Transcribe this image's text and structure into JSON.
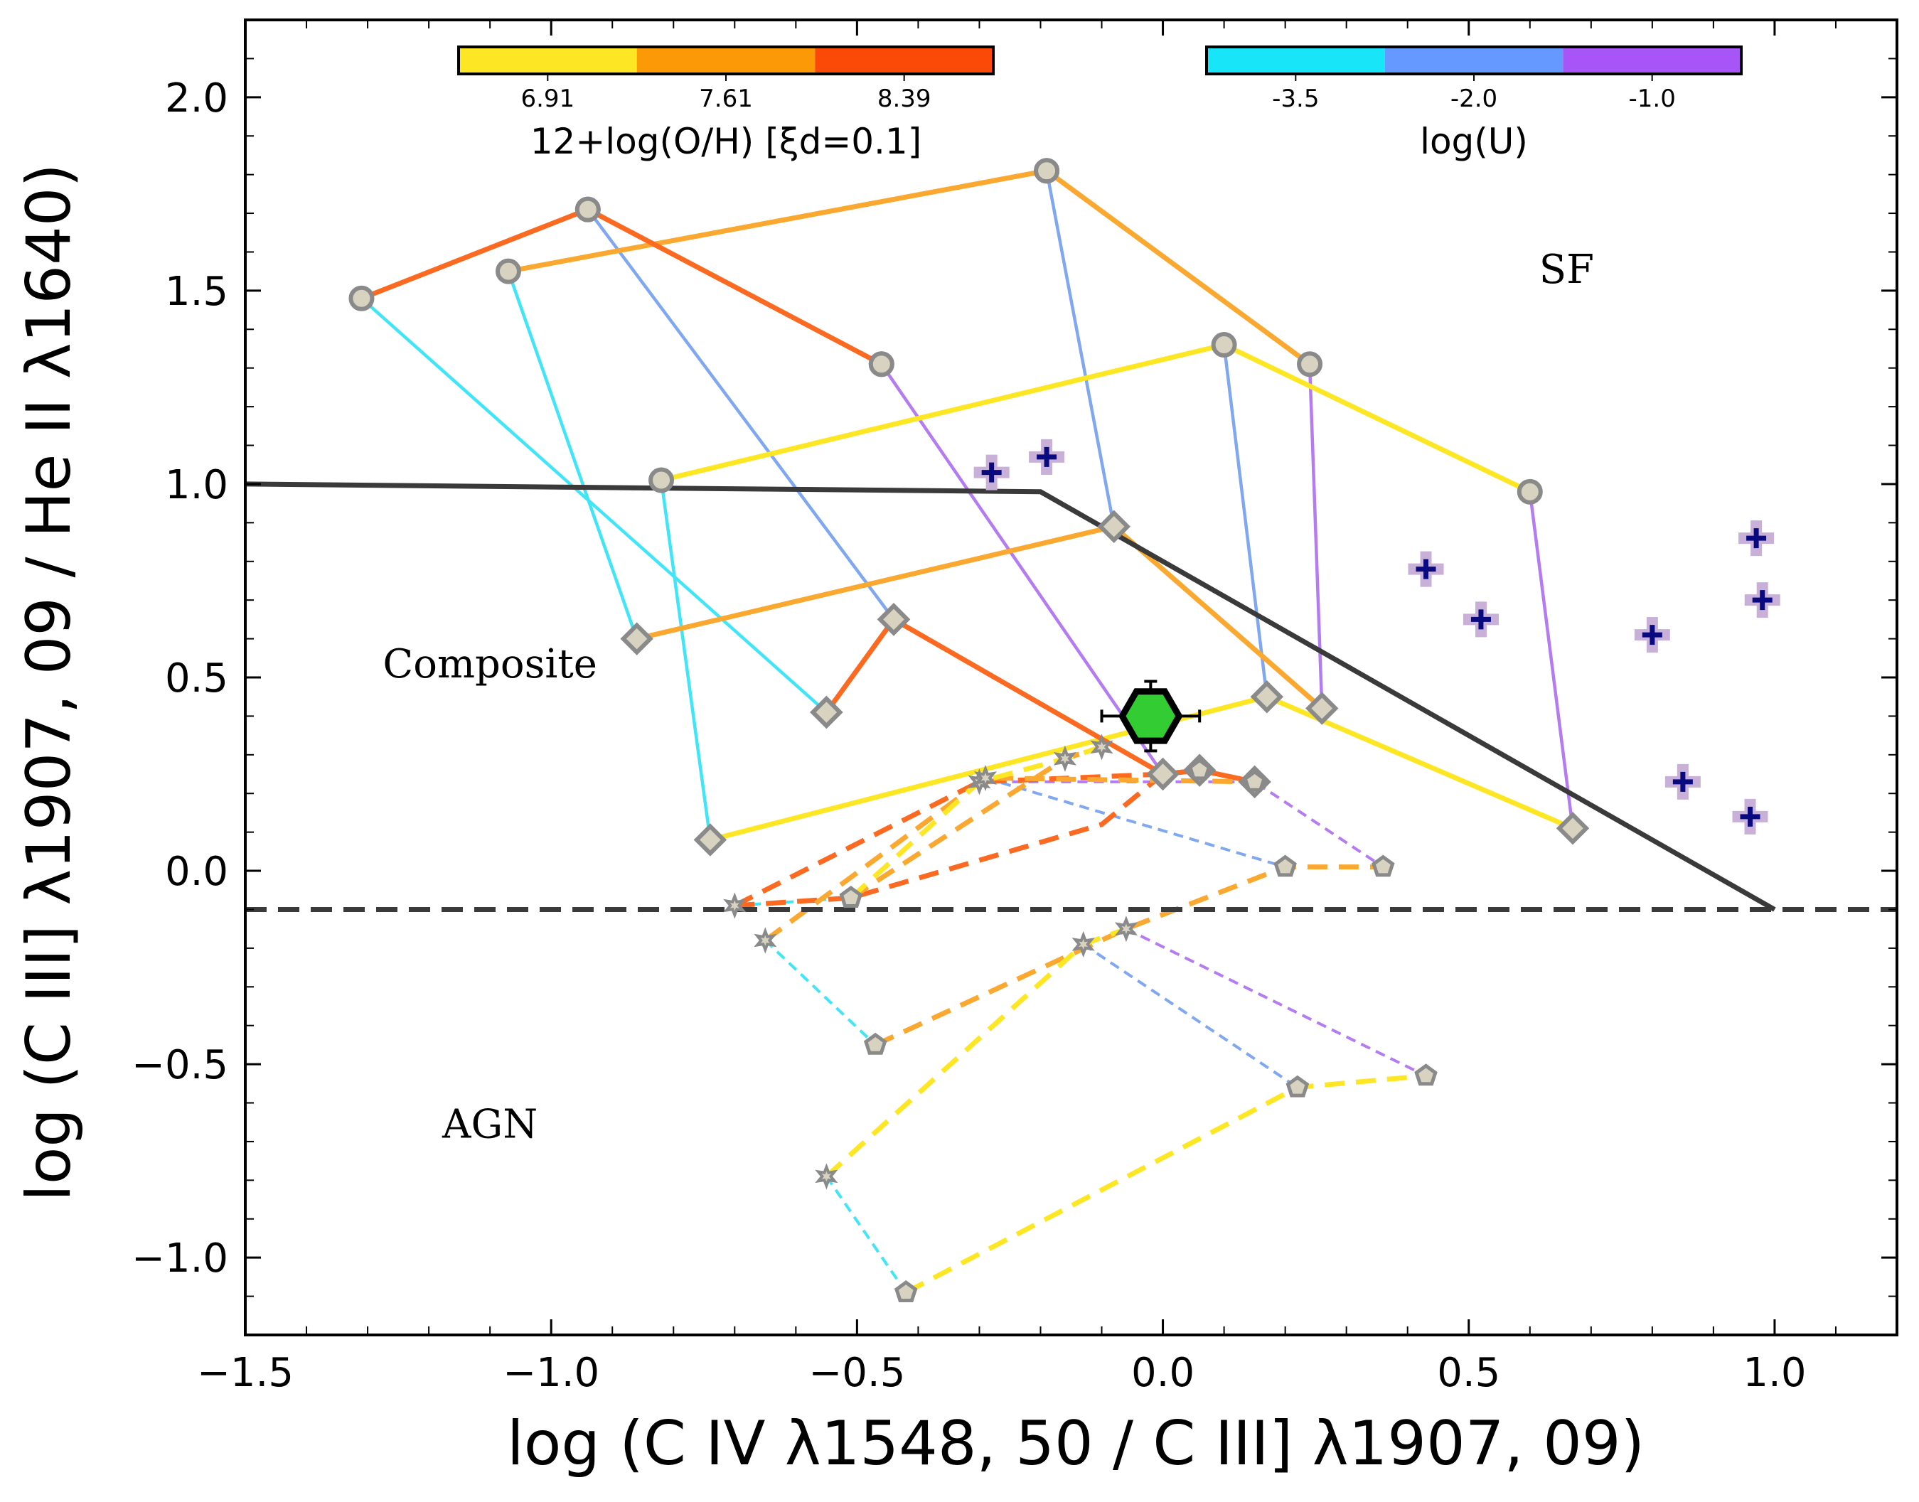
{
  "chart_data": {
    "type": "scatter",
    "xlabel": "log (C IV λ1548, 50 / C III] λ1907, 09)",
    "ylabel": "log (C III] λ1907, 09 / He II λ1640)",
    "xlim": [
      -1.5,
      1.2
    ],
    "ylim": [
      -1.2,
      2.2
    ],
    "x_ticks": [
      -1.5,
      -1.0,
      -0.5,
      0.0,
      0.5,
      1.0
    ],
    "x_tick_labels": [
      "−1.5",
      "−1.0",
      "−0.5",
      "0.0",
      "0.5",
      "1.0"
    ],
    "y_ticks": [
      -1.0,
      -0.5,
      0.0,
      0.5,
      1.0,
      1.5,
      2.0
    ],
    "y_tick_labels": [
      "−1.0",
      "−0.5",
      "0.0",
      "0.5",
      "1.0",
      "1.5",
      "2.0"
    ],
    "grid": false,
    "region_labels": [
      {
        "text": "SF",
        "x": 0.66,
        "y": 1.52
      },
      {
        "text": "Composite",
        "x": -1.1,
        "y": 0.5
      },
      {
        "text": "AGN",
        "x": -1.1,
        "y": -0.69
      }
    ],
    "demarcation": {
      "solid": {
        "x": [
          -1.5,
          -0.2,
          1.0
        ],
        "y": [
          1.0,
          0.98,
          -0.1
        ]
      },
      "dashed": {
        "y": -0.1
      }
    },
    "colorbars": [
      {
        "title": "12+log(O/H) [ξd=0.1]",
        "tick_labels": [
          "6.91",
          "7.61",
          "8.39"
        ],
        "colors": [
          "#fde725",
          "#fb9a06",
          "#fb4a08"
        ]
      },
      {
        "title": "log(U)",
        "tick_labels": [
          "-3.5",
          "-2.0",
          "-1.0"
        ],
        "colors": [
          "#18e6f8",
          "#6699ff",
          "#a855f7"
        ]
      }
    ],
    "metallicity_colors": {
      "low": "#fde725",
      "mid": "#fba830",
      "high": "#fb6a20"
    },
    "logU_colors": {
      "low": "#40e6f8",
      "mid": "#80a8f0",
      "high": "#b47cf0"
    },
    "sf_models": {
      "marker_logU_low": "circle",
      "marker_logU_high": "diamond",
      "metallicity_tracks": [
        {
          "metallicity": "low",
          "points": [
            [
              -0.82,
              1.01
            ],
            [
              0.1,
              1.36
            ],
            [
              0.6,
              0.98
            ]
          ]
        },
        {
          "metallicity": "low",
          "points": [
            [
              -0.74,
              0.08
            ],
            [
              0.17,
              0.45
            ],
            [
              0.67,
              0.11
            ]
          ]
        },
        {
          "metallicity": "mid",
          "points": [
            [
              -1.07,
              1.55
            ],
            [
              -0.19,
              1.81
            ],
            [
              0.24,
              1.31
            ]
          ]
        },
        {
          "metallicity": "mid",
          "points": [
            [
              -0.86,
              0.6
            ],
            [
              -0.08,
              0.89
            ],
            [
              0.26,
              0.42
            ]
          ]
        },
        {
          "metallicity": "high",
          "points": [
            [
              -1.31,
              1.48
            ],
            [
              -0.94,
              1.71
            ],
            [
              -0.46,
              1.31
            ]
          ]
        },
        {
          "metallicity": "high",
          "points": [
            [
              -0.55,
              0.41
            ],
            [
              -0.44,
              0.65
            ],
            [
              -0.0,
              0.25
            ],
            [
              0.06,
              0.26
            ],
            [
              0.15,
              0.23
            ]
          ]
        }
      ],
      "logU_tracks": [
        {
          "logU": "low",
          "points": [
            [
              -0.82,
              1.01
            ],
            [
              -0.74,
              0.08
            ]
          ]
        },
        {
          "logU": "mid",
          "points": [
            [
              0.1,
              1.36
            ],
            [
              0.17,
              0.45
            ]
          ]
        },
        {
          "logU": "high",
          "points": [
            [
              0.6,
              0.98
            ],
            [
              0.67,
              0.11
            ]
          ]
        },
        {
          "logU": "low",
          "points": [
            [
              -1.07,
              1.55
            ],
            [
              -0.86,
              0.6
            ]
          ]
        },
        {
          "logU": "mid",
          "points": [
            [
              -0.19,
              1.81
            ],
            [
              -0.08,
              0.89
            ]
          ]
        },
        {
          "logU": "high",
          "points": [
            [
              0.24,
              1.31
            ],
            [
              0.26,
              0.42
            ]
          ]
        },
        {
          "logU": "low",
          "points": [
            [
              -1.31,
              1.48
            ],
            [
              -0.55,
              0.41
            ]
          ]
        },
        {
          "logU": "mid",
          "points": [
            [
              -0.94,
              1.71
            ],
            [
              -0.44,
              0.65
            ]
          ]
        },
        {
          "logU": "high",
          "points": [
            [
              -0.46,
              1.31
            ],
            [
              -0.0,
              0.25
            ]
          ]
        }
      ]
    },
    "agn_models": {
      "marker_logU_low": "star",
      "marker_logU_high": "pentagon",
      "metallicity_tracks": [
        {
          "metallicity": "high",
          "points": [
            [
              -0.7,
              -0.09
            ],
            [
              -0.3,
              0.23
            ],
            [
              0.0,
              0.25
            ],
            [
              0.06,
              0.26
            ]
          ]
        },
        {
          "metallicity": "high",
          "points": [
            [
              -0.7,
              -0.09
            ],
            [
              -0.51,
              -0.07
            ],
            [
              -0.1,
              0.12
            ],
            [
              0.0,
              0.25
            ]
          ]
        },
        {
          "metallicity": "mid",
          "points": [
            [
              -0.51,
              -0.07
            ],
            [
              -0.16,
              0.29
            ],
            [
              -0.1,
              0.32
            ]
          ]
        },
        {
          "metallicity": "mid",
          "points": [
            [
              -0.65,
              -0.18
            ],
            [
              -0.29,
              0.24
            ],
            [
              0.15,
              0.23
            ]
          ]
        },
        {
          "metallicity": "mid",
          "points": [
            [
              -0.47,
              -0.45
            ],
            [
              -0.06,
              -0.15
            ],
            [
              0.2,
              0.01
            ],
            [
              0.36,
              0.01
            ]
          ]
        },
        {
          "metallicity": "low",
          "points": [
            [
              -0.42,
              -1.09
            ],
            [
              0.22,
              -0.56
            ],
            [
              0.43,
              -0.53
            ]
          ]
        },
        {
          "metallicity": "low",
          "points": [
            [
              -0.55,
              -0.79
            ],
            [
              -0.13,
              -0.19
            ],
            [
              -0.06,
              -0.15
            ]
          ]
        },
        {
          "metallicity": "low",
          "points": [
            [
              -0.51,
              -0.07
            ],
            [
              -0.3,
              0.23
            ],
            [
              -0.16,
              0.29
            ],
            [
              -0.1,
              0.32
            ]
          ]
        }
      ],
      "logU_tracks": [
        {
          "logU": "low",
          "points": [
            [
              -0.7,
              -0.09
            ],
            [
              -0.51,
              -0.07
            ]
          ]
        },
        {
          "logU": "low",
          "points": [
            [
              -0.65,
              -0.18
            ],
            [
              -0.47,
              -0.45
            ]
          ]
        },
        {
          "logU": "low",
          "points": [
            [
              -0.55,
              -0.79
            ],
            [
              -0.42,
              -1.09
            ]
          ]
        },
        {
          "logU": "mid",
          "points": [
            [
              -0.29,
              0.24
            ],
            [
              0.2,
              0.01
            ]
          ]
        },
        {
          "logU": "mid",
          "points": [
            [
              -0.13,
              -0.19
            ],
            [
              0.22,
              -0.56
            ]
          ]
        },
        {
          "logU": "high",
          "points": [
            [
              -0.3,
              0.23
            ],
            [
              0.15,
              0.23
            ],
            [
              0.36,
              0.01
            ]
          ]
        },
        {
          "logU": "high",
          "points": [
            [
              -0.06,
              -0.15
            ],
            [
              0.43,
              -0.53
            ]
          ]
        }
      ],
      "star_markers": [
        [
          -0.7,
          -0.09
        ],
        [
          -0.65,
          -0.18
        ],
        [
          -0.55,
          -0.79
        ],
        [
          -0.3,
          0.23
        ],
        [
          -0.29,
          0.24
        ],
        [
          -0.16,
          0.29
        ],
        [
          -0.1,
          0.32
        ],
        [
          -0.13,
          -0.19
        ],
        [
          -0.06,
          -0.15
        ]
      ],
      "pentagon_markers": [
        [
          -0.51,
          -0.07
        ],
        [
          -0.47,
          -0.45
        ],
        [
          -0.42,
          -1.09
        ],
        [
          0.2,
          0.01
        ],
        [
          0.36,
          0.01
        ],
        [
          0.22,
          -0.56
        ],
        [
          0.43,
          -0.53
        ],
        [
          0.06,
          0.26
        ],
        [
          0.15,
          0.23
        ]
      ]
    },
    "observed_galaxies": {
      "marker": "plus",
      "color": "#0a0a80",
      "points": [
        [
          -0.28,
          1.03
        ],
        [
          -0.19,
          1.07
        ],
        [
          0.43,
          0.78
        ],
        [
          0.52,
          0.65
        ],
        [
          0.8,
          0.61
        ],
        [
          0.97,
          0.86
        ],
        [
          0.98,
          0.7
        ],
        [
          0.85,
          0.23
        ],
        [
          0.96,
          0.14
        ]
      ]
    },
    "target": {
      "marker": "hexagon",
      "color": "#33cc33",
      "x": -0.02,
      "y": 0.4,
      "xerr": 0.08,
      "yerr": 0.09
    }
  }
}
